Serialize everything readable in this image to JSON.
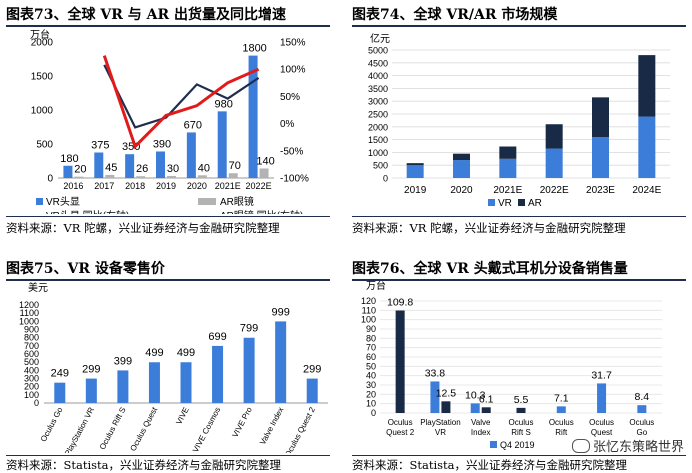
{
  "charts": [
    {
      "id": "c73",
      "title": "图表73、全球 VR 与 AR 出货量及同比增速",
      "source": "资料来源：VR 陀螺，兴业证券经济与金融研究院整理",
      "chart_data": {
        "type": "bar",
        "categories": [
          "2016",
          "2017",
          "2018",
          "2019",
          "2020",
          "2021E",
          "2022E"
        ],
        "ylabel": "万台",
        "ylim": [
          0,
          2000
        ],
        "y2lim": [
          -1.0,
          1.5
        ],
        "yticks": [
          "0",
          "500",
          "1000",
          "1500",
          "2000"
        ],
        "y2ticks": [
          "-100%",
          "-50%",
          "0%",
          "50%",
          "100%",
          "150%"
        ],
        "series": [
          {
            "name": "VR头显",
            "kind": "bar",
            "color": "#3c7dd9",
            "values": [
              180,
              375,
              350,
              390,
              670,
              980,
              1800
            ],
            "labels": [
              "180",
              "375",
              "350",
              "390",
              "670",
              "980",
              "1800"
            ]
          },
          {
            "name": "AR眼镜",
            "kind": "bar",
            "color": "#b3b3b3",
            "values": [
              20,
              45,
              26,
              30,
              40,
              70,
              140
            ],
            "labels": [
              "20",
              "45",
              "26",
              "30",
              "40",
              "70",
              "140"
            ]
          },
          {
            "name": "VR头显 同比(右轴)",
            "kind": "line",
            "color": "#1f2e4d",
            "values": [
              null,
              1.08,
              -0.07,
              0.11,
              0.72,
              0.46,
              0.84
            ]
          },
          {
            "name": "AR眼镜 同比(右轴)",
            "kind": "line",
            "color": "#e21a1a",
            "values": [
              null,
              1.25,
              -0.42,
              0.15,
              0.33,
              0.75,
              1.0
            ]
          }
        ]
      }
    },
    {
      "id": "c74",
      "title": "图表74、全球 VR/AR 市场规模",
      "source": "资料来源：VR 陀螺，兴业证券经济与金融研究院整理",
      "chart_data": {
        "type": "bar",
        "stacked": true,
        "categories": [
          "2019",
          "2020",
          "2021E",
          "2022E",
          "2023E",
          "2024E"
        ],
        "ylabel": "亿元",
        "ylim": [
          0,
          5000
        ],
        "yticks": [
          "0",
          "500",
          "1000",
          "1500",
          "2000",
          "2500",
          "3000",
          "3500",
          "4000",
          "4500",
          "5000"
        ],
        "series": [
          {
            "name": "VR",
            "color": "#3c7dd9",
            "values": [
              500,
              700,
              750,
              1150,
              1600,
              2400
            ]
          },
          {
            "name": "AR",
            "color": "#182a45",
            "values": [
              80,
              250,
              480,
              950,
              1550,
              2400
            ]
          }
        ]
      }
    },
    {
      "id": "c75",
      "title": "图表75、VR 设备零售价",
      "source": "资料来源：Statista，兴业证券经济与金融研究院整理",
      "chart_data": {
        "type": "bar",
        "categories": [
          "Oculus Go",
          "PlayStation VR",
          "Oculus Rift S",
          "Oculus Quest",
          "VIVE",
          "VIVE Cosmos",
          "VIVE Pro",
          "Valve Index",
          "Oculus Quest 2"
        ],
        "ylabel": "美元",
        "ylim": [
          0,
          1200
        ],
        "yticks": [
          "0",
          "100",
          "200",
          "300",
          "400",
          "500",
          "600",
          "700",
          "800",
          "900",
          "1000",
          "1100",
          "1200"
        ],
        "series": [
          {
            "name": "",
            "color": "#3c7dd9",
            "values": [
              249,
              299,
              399,
              499,
              499,
              699,
              799,
              999,
              299
            ],
            "labels": [
              "249",
              "299",
              "399",
              "499",
              "499",
              "699",
              "799",
              "999",
              "299"
            ]
          }
        ]
      }
    },
    {
      "id": "c76",
      "title": "图表76、全球 VR 头戴式耳机分设备销售量",
      "source": "资料来源：Statista，兴业证券经济与金融研究院整理",
      "chart_data": {
        "type": "bar",
        "categories": [
          "Oculus Quest 2",
          "PlayStation VR",
          "Valve Index",
          "Oculus Rift S",
          "Oculus Rift",
          "Oculus Quest",
          "Oculus Go"
        ],
        "ylabel": "万台",
        "ylim": [
          0,
          120
        ],
        "yticks": [
          "0",
          "10",
          "20",
          "30",
          "40",
          "50",
          "60",
          "70",
          "80",
          "90",
          "100",
          "110",
          "120"
        ],
        "series": [
          {
            "name": "Q4 2019",
            "color": "#3c7dd9",
            "values": [
              null,
              33.8,
              10.3,
              null,
              7.1,
              31.7,
              8.4
            ],
            "labels": [
              "",
              "33.8",
              "10.3",
              "",
              "7.1",
              "31.7",
              "8.4"
            ]
          },
          {
            "name": "",
            "color": "#182a45",
            "values": [
              109.8,
              12.5,
              6.1,
              5.5,
              null,
              null,
              null
            ],
            "labels": [
              "109.8",
              "12.5",
              "6.1",
              "5.5",
              "",
              "",
              ""
            ]
          }
        ]
      }
    }
  ],
  "watermark": "张忆东策略世界"
}
